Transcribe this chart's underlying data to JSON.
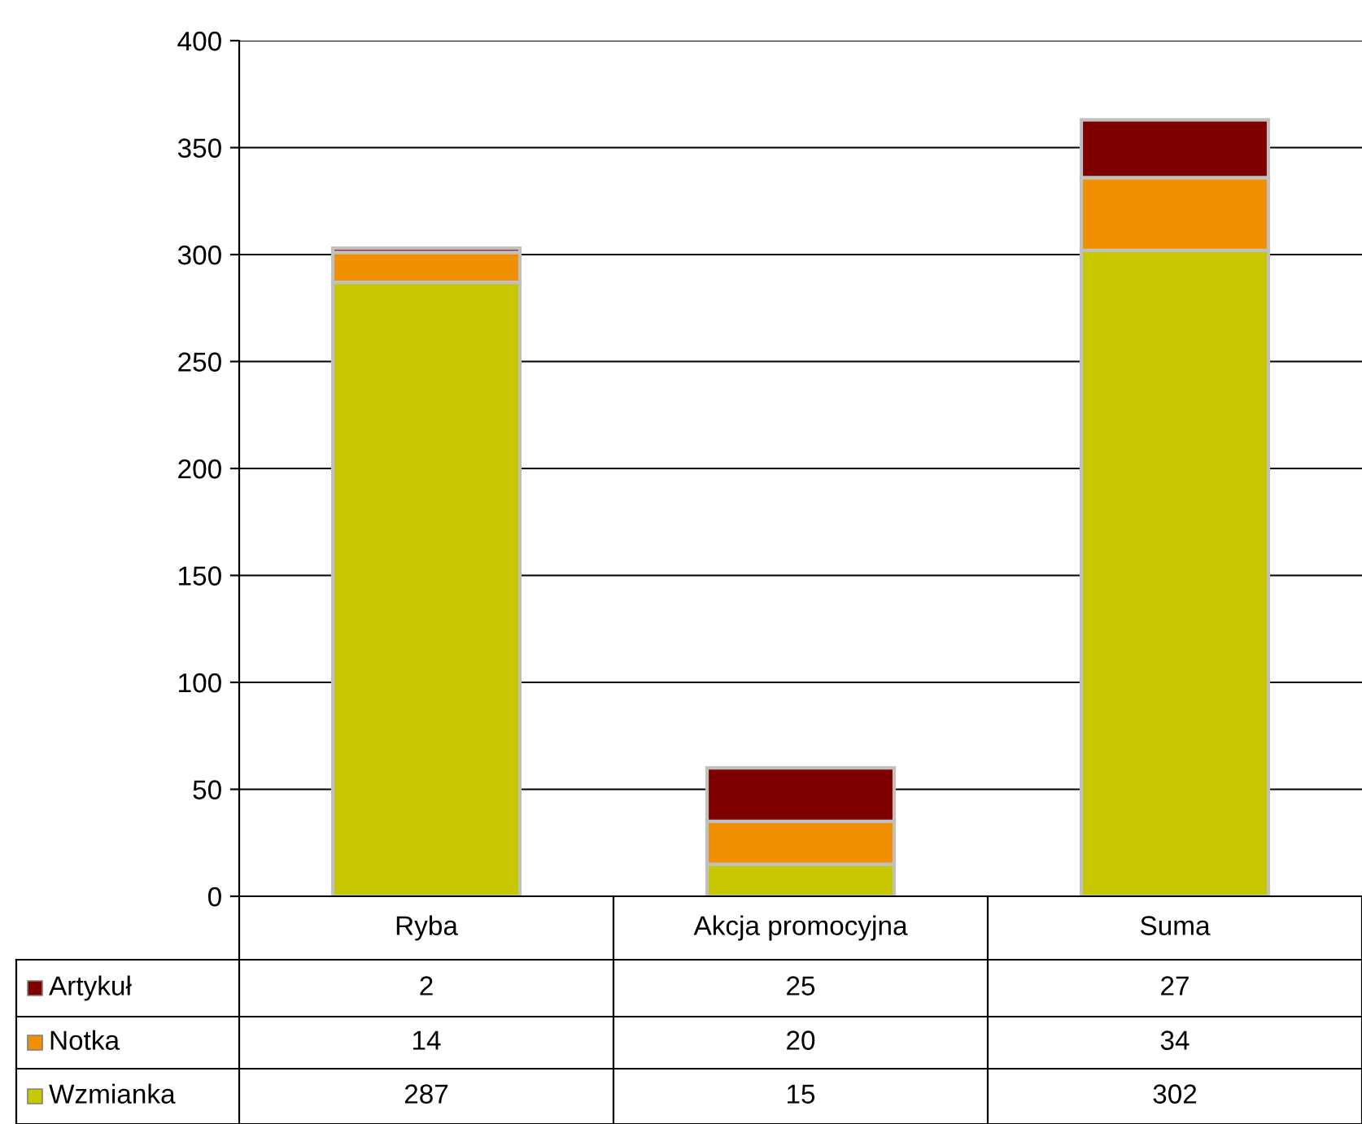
{
  "chart_data": {
    "type": "bar",
    "stacked": true,
    "categories": [
      "Ryba",
      "Akcja promocyjna",
      "Suma"
    ],
    "series": [
      {
        "name": "Wzmianka",
        "color": "#c8c800",
        "values": [
          287,
          15,
          302
        ]
      },
      {
        "name": "Notka",
        "color": "#f09000",
        "values": [
          14,
          20,
          34
        ]
      },
      {
        "name": "Artykuł",
        "color": "#800000",
        "values": [
          2,
          25,
          27
        ]
      }
    ],
    "ylim": [
      0,
      400
    ],
    "yticks": [
      0,
      50,
      100,
      150,
      200,
      250,
      300,
      350,
      400
    ],
    "grid": "y",
    "legend": "bottom left",
    "data_labels": true
  }
}
